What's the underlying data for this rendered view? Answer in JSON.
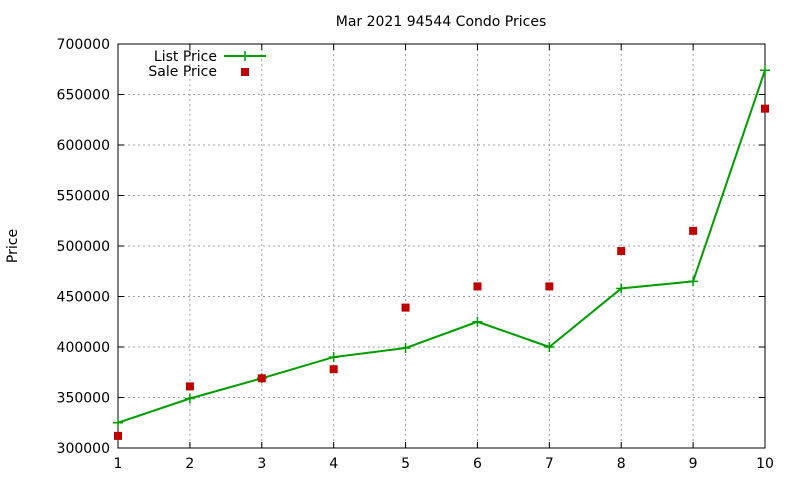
{
  "chart_data": {
    "type": "line",
    "title": "Mar 2021 94544 Condo Prices",
    "xlabel": "",
    "ylabel": "Price",
    "x": [
      1,
      2,
      3,
      4,
      5,
      6,
      7,
      8,
      9,
      10
    ],
    "xlim": [
      1,
      10
    ],
    "ylim": [
      300000,
      700000
    ],
    "xticks": [
      1,
      2,
      3,
      4,
      5,
      6,
      7,
      8,
      9,
      10
    ],
    "yticks": [
      300000,
      350000,
      400000,
      450000,
      500000,
      550000,
      600000,
      650000,
      700000
    ],
    "grid": true,
    "legend_position": "top-left",
    "series": [
      {
        "name": "List Price",
        "style": "line-with-plus-markers",
        "color": "#009e00",
        "values": [
          325000,
          349000,
          369000,
          390000,
          399000,
          425000,
          400000,
          458000,
          465000,
          674000
        ]
      },
      {
        "name": "Sale Price",
        "style": "square-markers",
        "color": "#c00000",
        "values": [
          312000,
          361000,
          369000,
          378000,
          439000,
          460000,
          460000,
          495000,
          515000,
          636000
        ]
      }
    ]
  }
}
